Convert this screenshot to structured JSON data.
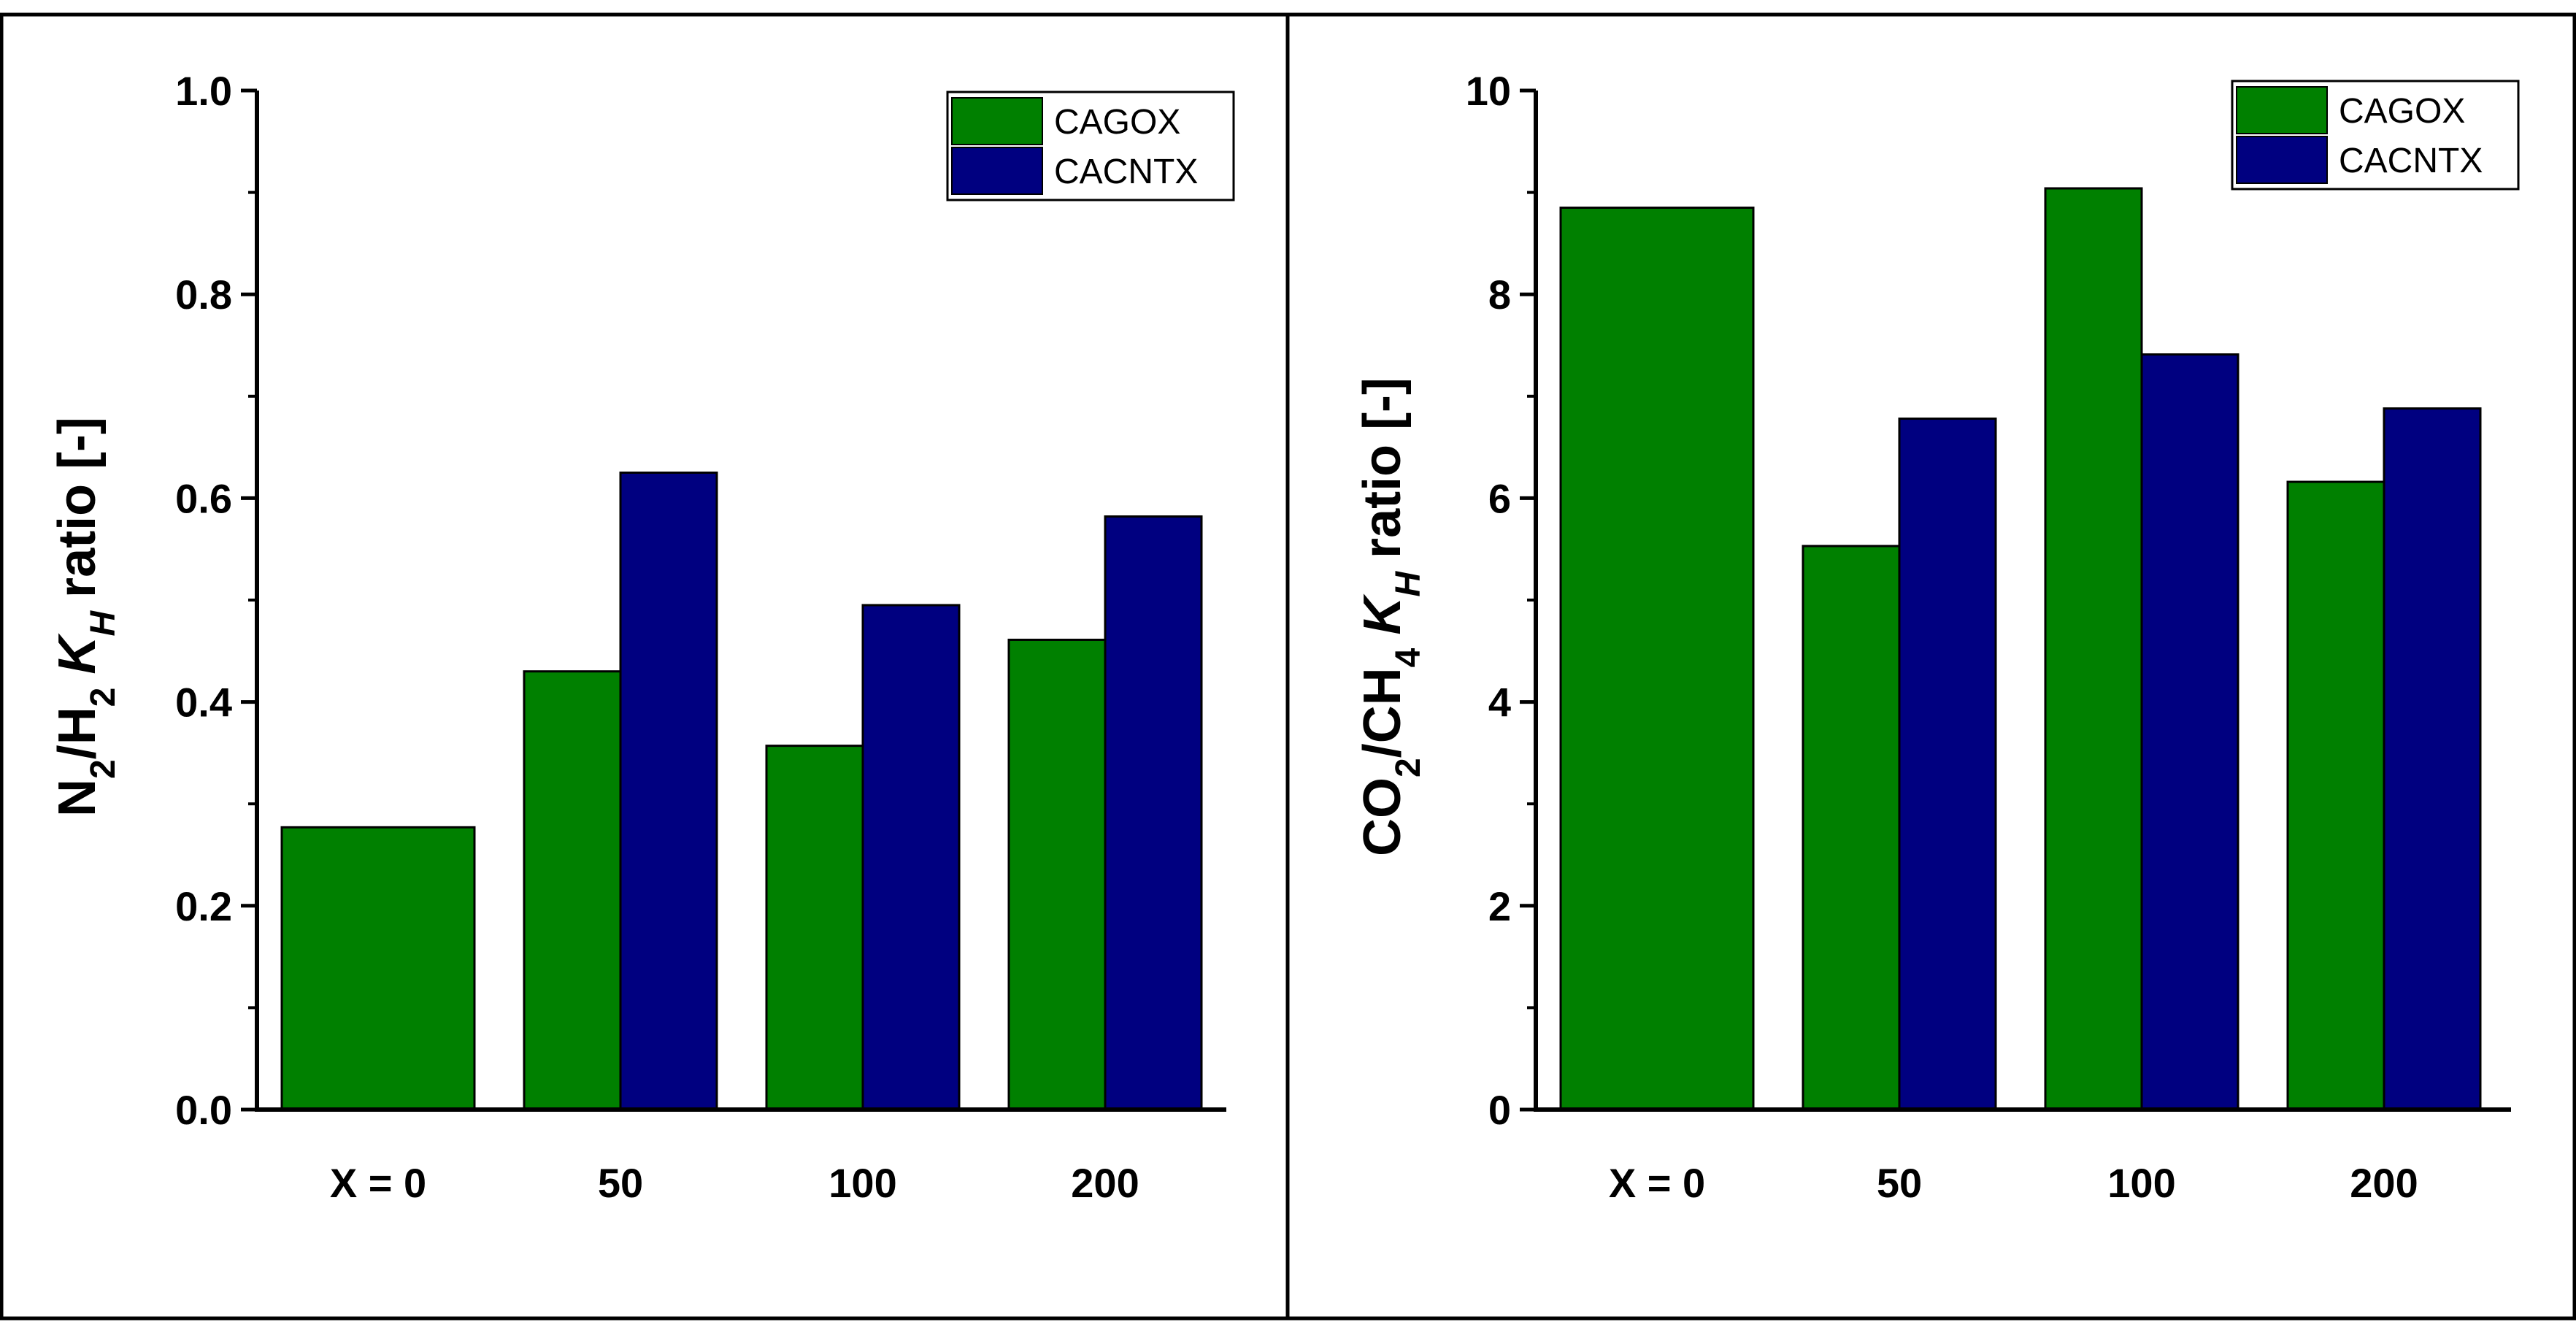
{
  "colors": {
    "cagox": "#008000",
    "cacntx": "#000080",
    "axis": "#000000"
  },
  "chart_data": [
    {
      "type": "bar",
      "categories": [
        "X = 0",
        "50",
        "100",
        "200"
      ],
      "series": [
        {
          "name": "CAGOX",
          "values": [
            0.277,
            0.43,
            0.357,
            0.461
          ]
        },
        {
          "name": "CACNTX",
          "values": [
            null,
            0.625,
            0.495,
            0.582
          ]
        }
      ],
      "ylabel_parts": {
        "a": "N",
        "a_sub": "2",
        "b": "/H",
        "b_sub": "2",
        "k": "K",
        "k_sub": "H",
        "rest": "ratio [-]"
      },
      "ylim": [
        0,
        1.0
      ],
      "yticks": [
        "0.0",
        "0.2",
        "0.4",
        "0.6",
        "0.8",
        "1.0"
      ],
      "legend": [
        "CAGOX",
        "CACNTX"
      ],
      "legend_position": "top-right",
      "grid": false
    },
    {
      "type": "bar",
      "categories": [
        "X = 0",
        "50",
        "100",
        "200"
      ],
      "series": [
        {
          "name": "CAGOX",
          "values": [
            8.85,
            5.53,
            9.04,
            6.16
          ]
        },
        {
          "name": "CACNTX",
          "values": [
            null,
            6.78,
            7.41,
            6.88
          ]
        }
      ],
      "ylabel_parts": {
        "a": "CO",
        "a_sub": "2",
        "b": "/CH",
        "b_sub": "4",
        "k": "K",
        "k_sub": "H",
        "rest": "ratio [-]"
      },
      "ylim": [
        0,
        10
      ],
      "yticks": [
        "0",
        "2",
        "4",
        "6",
        "8",
        "10"
      ],
      "legend": [
        "CAGOX",
        "CACNTX"
      ],
      "legend_position": "top-right",
      "grid": false
    }
  ]
}
